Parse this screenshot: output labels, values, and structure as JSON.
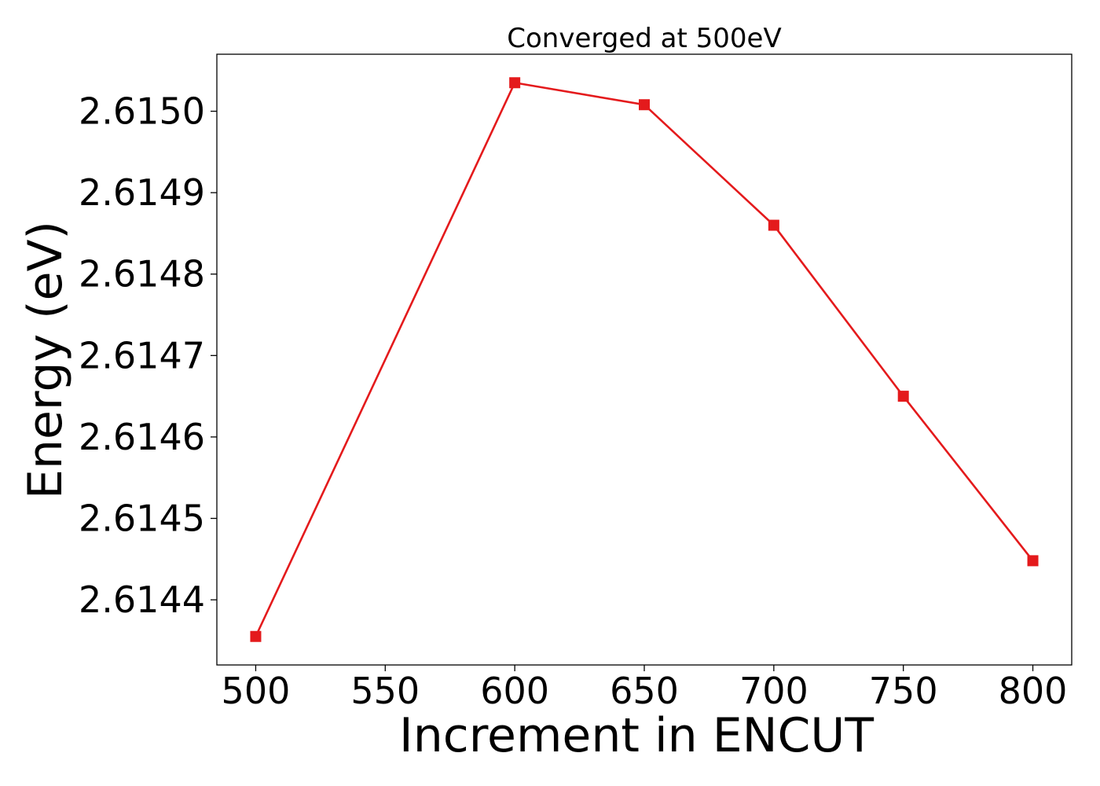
{
  "chart_data": {
    "type": "line",
    "title": "Converged at 500eV",
    "xlabel": "Increment in ENCUT",
    "ylabel": "Energy (eV)",
    "x": [
      500,
      600,
      650,
      700,
      750,
      800
    ],
    "series": [
      {
        "values": [
          2.614355,
          2.615035,
          2.615008,
          2.61486,
          2.61465,
          2.614448
        ],
        "color": "#e41a1c",
        "marker": "square"
      }
    ],
    "xticks": [
      500,
      550,
      600,
      650,
      700,
      750,
      800
    ],
    "xtick_labels": [
      "500",
      "550",
      "600",
      "650",
      "700",
      "750",
      "800"
    ],
    "yticks": [
      2.6144,
      2.6145,
      2.6146,
      2.6147,
      2.6148,
      2.6149,
      2.615
    ],
    "ytick_labels": [
      "2.6144",
      "2.6145",
      "2.6146",
      "2.6147",
      "2.6148",
      "2.6149",
      "2.6150"
    ],
    "xlim": [
      485,
      815
    ],
    "ylim": [
      2.61432,
      2.61507
    ],
    "grid": false,
    "legend": false
  }
}
